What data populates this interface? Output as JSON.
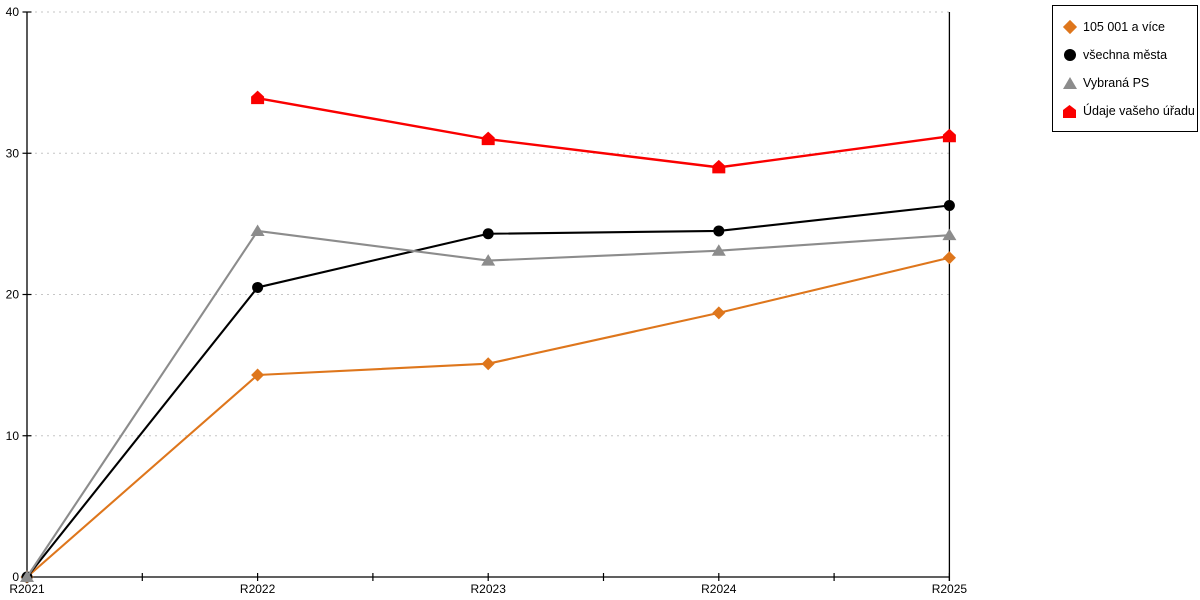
{
  "chart_data": {
    "type": "line",
    "title": "",
    "xlabel": "",
    "ylabel": "",
    "categories": [
      "R2021",
      "R2022",
      "R2023",
      "R2024",
      "R2025"
    ],
    "series": [
      {
        "name": "105 001 a více",
        "marker": "diamond",
        "color": "#DE761C",
        "values": [
          0,
          14.3,
          15.1,
          18.7,
          22.6
        ]
      },
      {
        "name": "všechna města",
        "marker": "circle",
        "color": "#000000",
        "values": [
          0,
          20.5,
          24.3,
          24.5,
          26.3
        ]
      },
      {
        "name": "Vybraná PS",
        "marker": "triangle",
        "color": "#8C8C8C",
        "values": [
          0,
          24.5,
          22.4,
          23.1,
          24.2
        ]
      },
      {
        "name": "Údaje vašeho úřadu",
        "marker": "pentagon",
        "color": "#FA0000",
        "values": [
          null,
          33.9,
          31.0,
          29.0,
          31.2
        ]
      }
    ],
    "ylim": [
      0,
      40
    ],
    "yticks": [
      0,
      10,
      20,
      30,
      40
    ],
    "grid": "horizontal-dashed",
    "gridline_color": "#C6C6C6",
    "legend_position": "top-right-outside"
  }
}
